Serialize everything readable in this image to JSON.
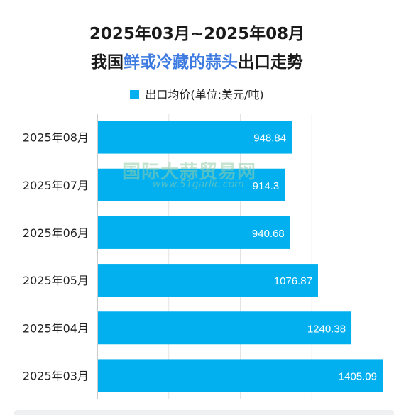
{
  "chart_data": {
    "type": "bar",
    "orientation": "horizontal",
    "title_line1": "2025年03月~2025年08月",
    "title_line2_prefix": "我国",
    "title_line2_highlight": "鲜或冷藏的蒜头",
    "title_line2_suffix": "出口走势",
    "legend_position": "top",
    "categories": [
      "2025年08月",
      "2025年07月",
      "2025年06月",
      "2025年05月",
      "2025年04月",
      "2025年03月"
    ],
    "series": [
      {
        "name": "出口均价(单位:美元/吨)",
        "values": [
          948.84,
          914.3,
          940.68,
          1076.87,
          1240.38,
          1405.09
        ],
        "color": "#02b0f0"
      }
    ],
    "xlim": [
      0,
      1400
    ],
    "grid": "vertical"
  },
  "watermark": {
    "text": "国际大蒜贸易网",
    "url": "www.51garlic.com"
  }
}
